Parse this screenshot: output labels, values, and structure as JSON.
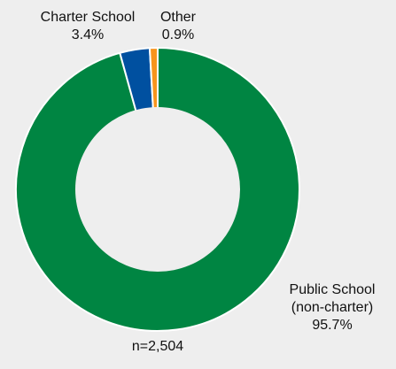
{
  "chart_data": {
    "type": "pie",
    "donut": true,
    "slices": [
      {
        "label": "Public School",
        "sublabel": "(non-charter)",
        "value": 95.7,
        "value_label": "95.7%",
        "color": "#008542"
      },
      {
        "label": "Charter School",
        "value": 3.4,
        "value_label": "3.4%",
        "color": "#0050a0"
      },
      {
        "label": "Other",
        "value": 0.9,
        "value_label": "0.9%",
        "color": "#f7941d"
      }
    ],
    "center_color": "#eeeeee",
    "note": "n=2,504"
  }
}
